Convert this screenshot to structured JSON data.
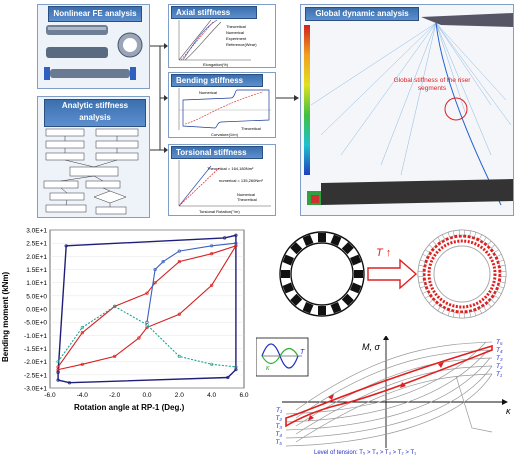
{
  "top": {
    "nonlinear_fe_title": "Nonlinear FE analysis",
    "analytic_title": "Analytic stiffness analysis",
    "axial": {
      "title": "Axial stiffness",
      "legend": [
        "Theoretical",
        "Numerical",
        "Experiment",
        "Reference(Wear)"
      ],
      "xlabel": "Elongation(%)"
    },
    "bending": {
      "title": "Bending stiffness",
      "legend": [
        "Numerical",
        "Theoretical"
      ],
      "xlabel": "Curvature(1/m)"
    },
    "torsional": {
      "title": "Torsional stiffness",
      "legend": [
        "Numerical",
        "Theoretical"
      ],
      "xlabel": "Torsional Rotation(°/m)",
      "annotations": [
        "Theoretical = 164,180Nm²",
        "numerical = 135,260Nm²"
      ]
    },
    "global_title": "Global dynamic analysis",
    "global_label": "Global stiffness of the riser segments"
  },
  "hysteresis_plot": {
    "ylabel": "Bending moment (kNm)",
    "xlabel": "Rotation angle at RP-1 (Deg.)",
    "yticks": [
      "3.0E+1",
      "2.5E+1",
      "2.0E+1",
      "1.5E+1",
      "1.0E+1",
      "5.0E+0",
      "0.0E+0",
      "-5.0E+0",
      "-1.0E+1",
      "-1.5E+1",
      "-2.0E+1",
      "-2.5E+1",
      "-3.0E+1"
    ],
    "xticks": [
      "-6.0",
      "-4.0",
      "-2.0",
      "0.0",
      "2.0",
      "4.0",
      "6.0"
    ]
  },
  "ring_diagram": {
    "arrow_label": "T ↑"
  },
  "schematic": {
    "ylabel": "M, σ",
    "xlabel": "κ",
    "inset_labels": [
      "κ",
      "T"
    ],
    "right_labels": [
      "T₅",
      "T₄",
      "T₃",
      "T₂",
      "T₁"
    ],
    "left_labels": [
      "T₁",
      "T₂",
      "T₃",
      "T₄",
      "T₅"
    ],
    "caption": "Level of tension: T₅ > T₄ > T₃ > T₂ > T₁"
  },
  "chart_data": {
    "type": "line",
    "title": "",
    "xlabel": "Rotation angle at RP-1 (Deg.)",
    "ylabel": "Bending moment (kNm)",
    "xlim": [
      -6,
      6
    ],
    "ylim": [
      -30,
      30
    ],
    "series": [
      {
        "color": "#1f1f7a",
        "x": [
          -5.5,
          -5.0,
          4.8,
          5.5,
          5.5,
          5.0,
          -4.8,
          -5.5,
          -5.5
        ],
        "y": [
          -24,
          24,
          27,
          28,
          -23,
          -26,
          -28,
          -27,
          -24
        ]
      },
      {
        "color": "#d62020",
        "x": [
          -5.5,
          -4.0,
          -2.0,
          0.0,
          0.5,
          2.0,
          4.0,
          5.5,
          4.0,
          2.0,
          0.0,
          -0.5,
          -2.0,
          -4.0,
          -5.5
        ],
        "y": [
          -22,
          -9,
          1,
          6,
          10,
          18,
          21,
          24,
          9,
          -2,
          -7,
          -11,
          -18,
          -21,
          -23
        ]
      },
      {
        "color": "#3a60c0",
        "x": [
          0.0,
          0.5,
          1.0,
          2.0,
          4.0,
          5.5
        ],
        "y": [
          -5,
          15,
          18,
          22,
          24,
          25
        ]
      },
      {
        "color": "#20a090",
        "x": [
          -5.5,
          -4.0,
          -2.0,
          0.0,
          2.0,
          4.0,
          5.5
        ],
        "y": [
          -20,
          -7,
          1,
          -6,
          -18,
          -21,
          -22
        ]
      }
    ]
  },
  "colors": {
    "title_blue": "#3b6fae",
    "red": "#e02020",
    "panel_border": "#7f9fc8"
  }
}
